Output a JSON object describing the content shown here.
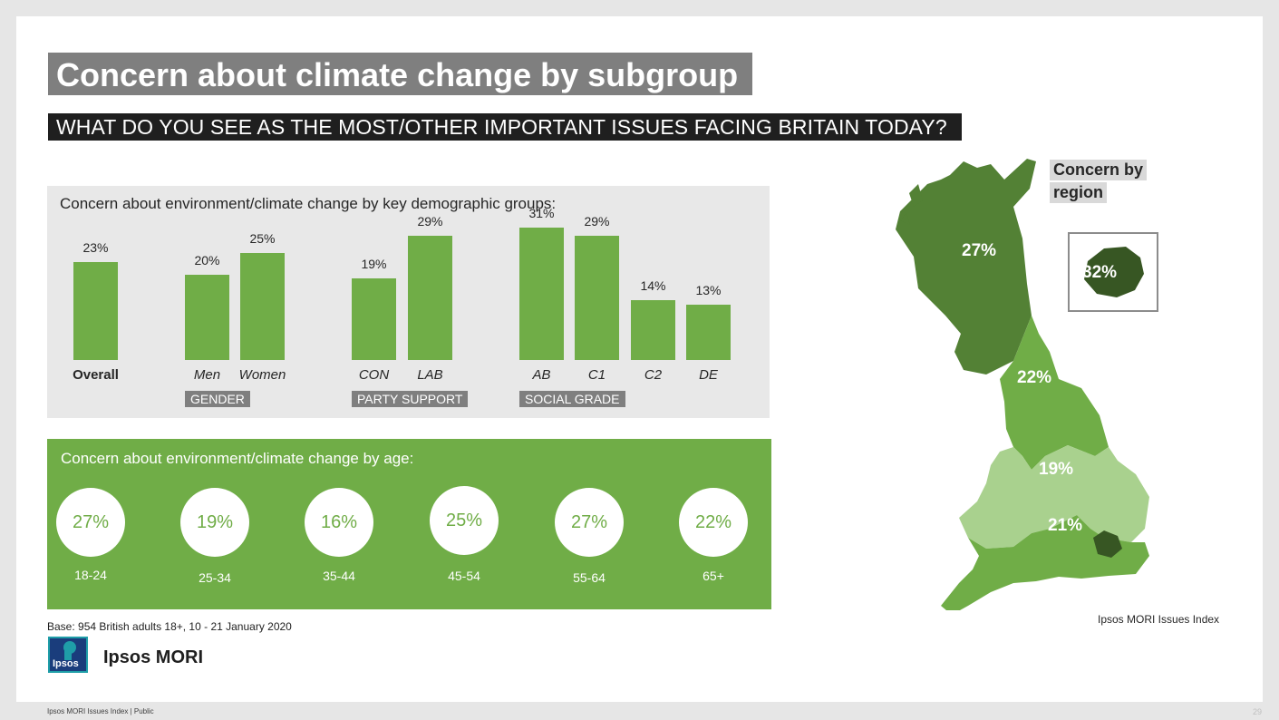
{
  "header": {
    "title": "Concern about climate change by subgroup",
    "subtitle": "WHAT DO YOU SEE AS THE MOST/OTHER IMPORTANT ISSUES FACING BRITAIN TODAY?"
  },
  "colors": {
    "accent_green": "#70ad47",
    "dark_green": "#4a7a2e",
    "mid_green": "#70ad47",
    "light_green": "#a9d18e",
    "london_green": "#375623",
    "grey_label": "#7f7f7f"
  },
  "chart_data": [
    {
      "type": "bar",
      "title": "Concern about environment/climate change by key demographic groups:",
      "ylim": [
        0,
        35
      ],
      "categories": [
        "Overall",
        "Men",
        "Women",
        "CON",
        "LAB",
        "AB",
        "C1",
        "C2",
        "DE"
      ],
      "values": [
        23,
        20,
        25,
        19,
        29,
        31,
        29,
        14,
        13
      ],
      "value_labels": [
        "23%",
        "20%",
        "25%",
        "19%",
        "29%",
        "31%",
        "29%",
        "14%",
        "13%"
      ],
      "groups": [
        {
          "name": "GENDER",
          "categories": [
            "Men",
            "Women"
          ]
        },
        {
          "name": "PARTY SUPPORT",
          "categories": [
            "CON",
            "LAB"
          ]
        },
        {
          "name": "SOCIAL GRADE",
          "categories": [
            "AB",
            "C1",
            "C2",
            "DE"
          ]
        }
      ],
      "grid": false
    },
    {
      "type": "table",
      "title": "Concern about environment/climate change by age:",
      "categories": [
        "18-24",
        "25-34",
        "35-44",
        "45-54",
        "55-64",
        "65+"
      ],
      "values": [
        27,
        19,
        16,
        25,
        27,
        22
      ],
      "value_labels": [
        "27%",
        "19%",
        "16%",
        "25%",
        "27%",
        "22%"
      ]
    },
    {
      "type": "heatmap",
      "title": "Concern by region",
      "regions": [
        {
          "name": "Scotland",
          "value": 27,
          "label": "27%"
        },
        {
          "name": "North",
          "value": 22,
          "label": "22%"
        },
        {
          "name": "Midlands/Wales",
          "value": 19,
          "label": "19%"
        },
        {
          "name": "South",
          "value": 21,
          "label": "21%"
        },
        {
          "name": "London",
          "value": 32,
          "label": "32%"
        }
      ]
    }
  ],
  "base_text": "Base: 954 British adults 18+, 10 - 21 January 2020",
  "map_source": "Ipsos MORI Issues Index",
  "logo": {
    "word": "Ipsos",
    "name": "Ipsos MORI"
  },
  "footer": {
    "text": "Ipsos MORI Issues Index | Public",
    "page": "29"
  }
}
